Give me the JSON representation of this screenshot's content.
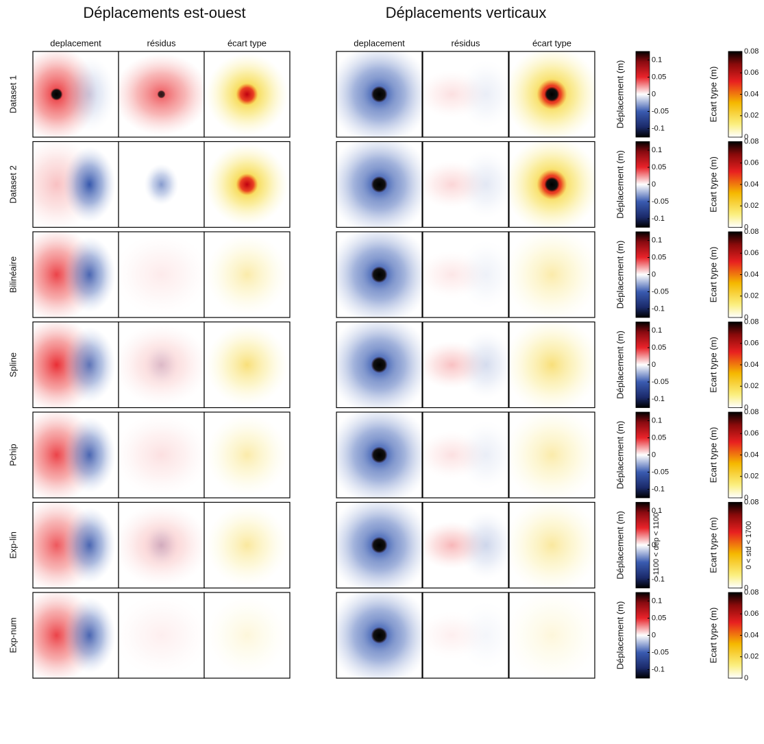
{
  "titles": [
    "Déplacements est-ouest",
    "Déplacements verticaux"
  ],
  "column_headers": [
    "deplacement",
    "résidus",
    "écart type"
  ],
  "deplacement_lim": [
    -0.125,
    0.125
  ],
  "std_lim": [
    0,
    0.08
  ],
  "rows": [
    {
      "label": "Dataset 1",
      "disp_colorbar": {
        "label": "Déplacement (m)",
        "ticks": [
          0.1,
          0.05,
          0,
          -0.05,
          -0.1
        ]
      },
      "std_colorbar": {
        "label": "Ecart type (m)",
        "ticks": [
          0.08,
          0.06,
          0.04,
          0.02,
          0
        ]
      }
    },
    {
      "label": "Dataset 2",
      "disp_colorbar": {
        "label": "Déplacement (m)",
        "ticks": [
          0.1,
          0.05,
          0,
          -0.05,
          -0.1
        ]
      },
      "std_colorbar": {
        "label": "Ecart type (m)",
        "ticks": [
          0.08,
          0.06,
          0.04,
          0.02,
          0
        ]
      }
    },
    {
      "label": "Bilinéaire",
      "disp_colorbar": {
        "label": "Déplacement (m)",
        "ticks": [
          0.1,
          0.05,
          0,
          -0.05,
          -0.1
        ]
      },
      "std_colorbar": {
        "label": "Ecart type (m)",
        "ticks": [
          0.08,
          0.06,
          0.04,
          0.02,
          0
        ]
      }
    },
    {
      "label": "Spline",
      "disp_colorbar": {
        "label": "Déplacement (m)",
        "ticks": [
          0.1,
          0.05,
          0,
          -0.05,
          -0.1
        ]
      },
      "std_colorbar": {
        "label": "Ecart type (m)",
        "ticks": [
          0.08,
          0.06,
          0.04,
          0.02,
          0
        ]
      }
    },
    {
      "label": "Pchip",
      "disp_colorbar": {
        "label": "Déplacement (m)",
        "ticks": [
          0.1,
          0.05,
          0,
          -0.05,
          -0.1
        ]
      },
      "std_colorbar": {
        "label": "Ecart type (m)",
        "ticks": [
          0.08,
          0.06,
          0.04,
          0.02,
          0
        ]
      }
    },
    {
      "label": "Exp-lin",
      "disp_colorbar": {
        "label": "Déplacement (m)",
        "ticks": [
          0.1,
          0,
          -0.1
        ],
        "range_label": "-1100 < dep < 1100"
      },
      "std_colorbar": {
        "label": "Ecart type (m)",
        "ticks": [
          0.08,
          0
        ],
        "range_label": "0 < std < 1700"
      }
    },
    {
      "label": "Exp-num",
      "disp_colorbar": {
        "label": "Déplacement (m)",
        "ticks": [
          0.1,
          0.05,
          0,
          -0.05,
          -0.1
        ]
      },
      "std_colorbar": {
        "label": "Ecart type (m)",
        "ticks": [
          0.08,
          0.06,
          0.04,
          0.02,
          0
        ]
      }
    }
  ]
}
